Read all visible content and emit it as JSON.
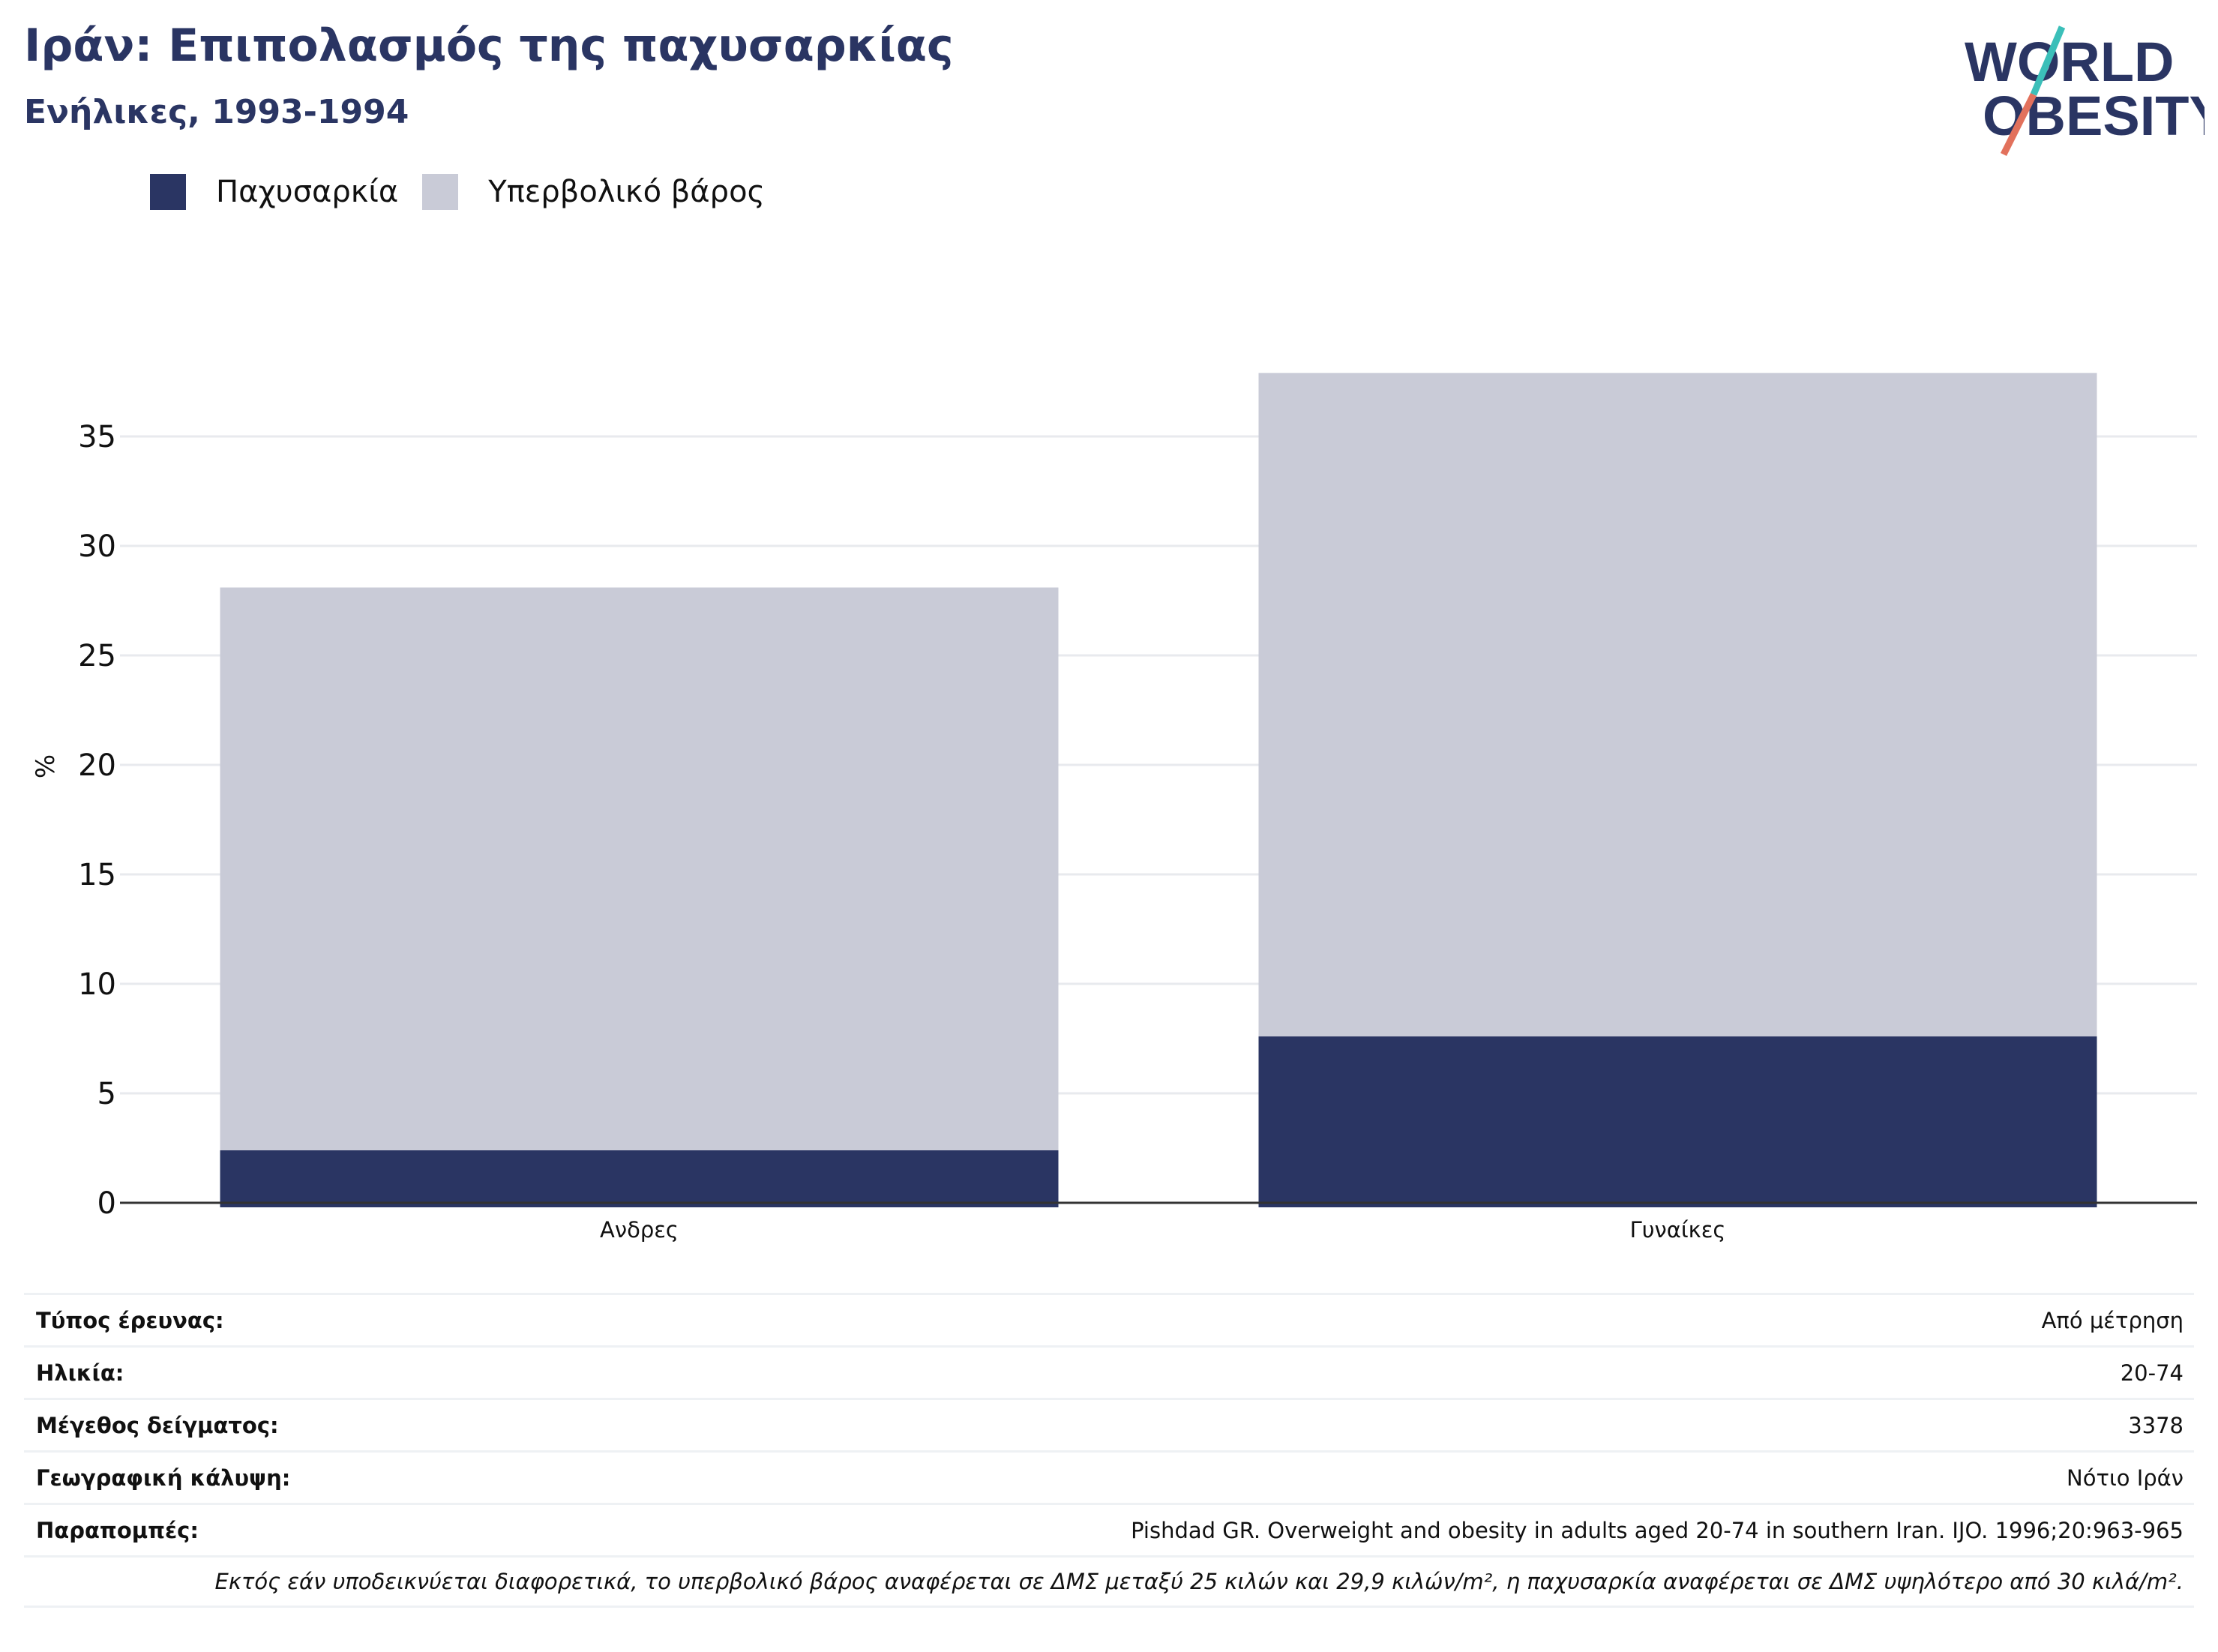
{
  "header": {
    "title": "Ιράν: Επιπολασμός της παχυσαρκίας",
    "subtitle": "Ενήλικες, 1993-1994"
  },
  "logo": {
    "line1": "WORLD",
    "line2": "OBESITY",
    "text_color": "#2a3563",
    "slash_colors": [
      "#3bbfb9",
      "#e2715c"
    ]
  },
  "legend": [
    {
      "label": "Παχυσαρκία",
      "color": "#2a3563"
    },
    {
      "label": "Υπερβολικό βάρος",
      "color": "#c9cbd7"
    }
  ],
  "chart_data": {
    "type": "bar",
    "stacked": true,
    "categories": [
      "Ανδρες",
      "Γυναίκες"
    ],
    "series": [
      {
        "name": "Παχυσαρκία",
        "color": "#2a3563",
        "values": [
          2.4,
          7.6
        ]
      },
      {
        "name": "Υπερβολικό βάρος",
        "color": "#c9cbd7",
        "values": [
          25.7,
          30.3
        ]
      }
    ],
    "ylabel": "%",
    "ylim": [
      0,
      38
    ],
    "yticks": [
      0,
      5,
      10,
      15,
      20,
      25,
      30,
      35
    ],
    "grid": true,
    "legend_position": "top-left"
  },
  "info": [
    {
      "key": "Τύπος έρευνας:",
      "value": "Από μέτρηση"
    },
    {
      "key": "Ηλικία:",
      "value": "20-74"
    },
    {
      "key": "Μέγεθος δείγματος:",
      "value": "3378"
    },
    {
      "key": "Γεωγραφική κάλυψη:",
      "value": "Νότιο Ιράν"
    },
    {
      "key": "Παραπομπές:",
      "value": "Pishdad GR. Overweight and obesity in adults aged 20-74 in southern Iran. IJO. 1996;20:963-965"
    }
  ],
  "note": "Εκτός εάν υποδεικνύεται διαφορετικά, το υπερβολικό βάρος αναφέρεται σε ΔΜΣ μεταξύ 25 κιλών και 29,9 κιλών/m², η παχυσαρκία αναφέρεται σε ΔΜΣ υψηλότερο από 30 κιλά/m²."
}
